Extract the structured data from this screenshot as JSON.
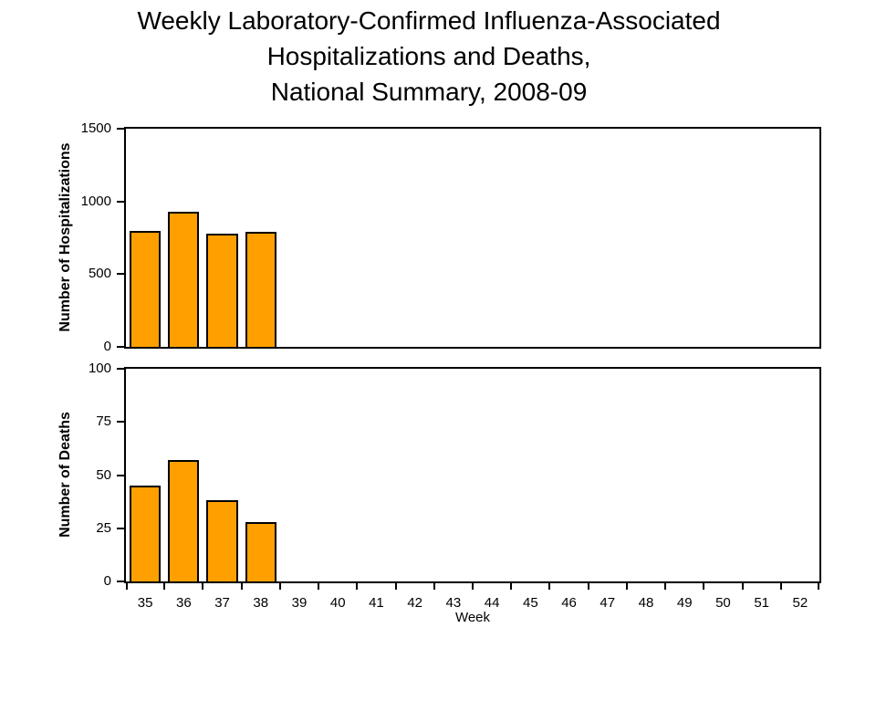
{
  "title": {
    "line1": "Weekly Laboratory-Confirmed Influenza-Associated",
    "line2": "Hospitalizations and Deaths,",
    "line3": "National Summary, 2008-09"
  },
  "colors": {
    "bar_fill": "#FFA000",
    "bar_border": "#000000",
    "axis": "#000000",
    "background": "#FFFFFF",
    "text": "#000000"
  },
  "chart_data": [
    {
      "type": "bar",
      "title": "",
      "ylabel": "Number of Hospitalizations",
      "xlabel": "",
      "categories": [
        "35",
        "36",
        "37",
        "38",
        "39",
        "40",
        "41",
        "42",
        "43",
        "44",
        "45",
        "46",
        "47",
        "48",
        "49",
        "50",
        "51",
        "52"
      ],
      "values": [
        800,
        930,
        780,
        790,
        null,
        null,
        null,
        null,
        null,
        null,
        null,
        null,
        null,
        null,
        null,
        null,
        null,
        null
      ],
      "ylim": [
        0,
        1500
      ],
      "yticks": [
        0,
        500,
        1000,
        1500
      ],
      "grid": false,
      "legend": "none"
    },
    {
      "type": "bar",
      "title": "",
      "ylabel": "Number of Deaths",
      "xlabel": "Week",
      "categories": [
        "35",
        "36",
        "37",
        "38",
        "39",
        "40",
        "41",
        "42",
        "43",
        "44",
        "45",
        "46",
        "47",
        "48",
        "49",
        "50",
        "51",
        "52"
      ],
      "values": [
        45,
        57,
        38,
        28,
        null,
        null,
        null,
        null,
        null,
        null,
        null,
        null,
        null,
        null,
        null,
        null,
        null,
        null
      ],
      "ylim": [
        0,
        100
      ],
      "yticks": [
        0,
        25,
        50,
        75,
        100
      ],
      "grid": false,
      "legend": "none"
    }
  ]
}
